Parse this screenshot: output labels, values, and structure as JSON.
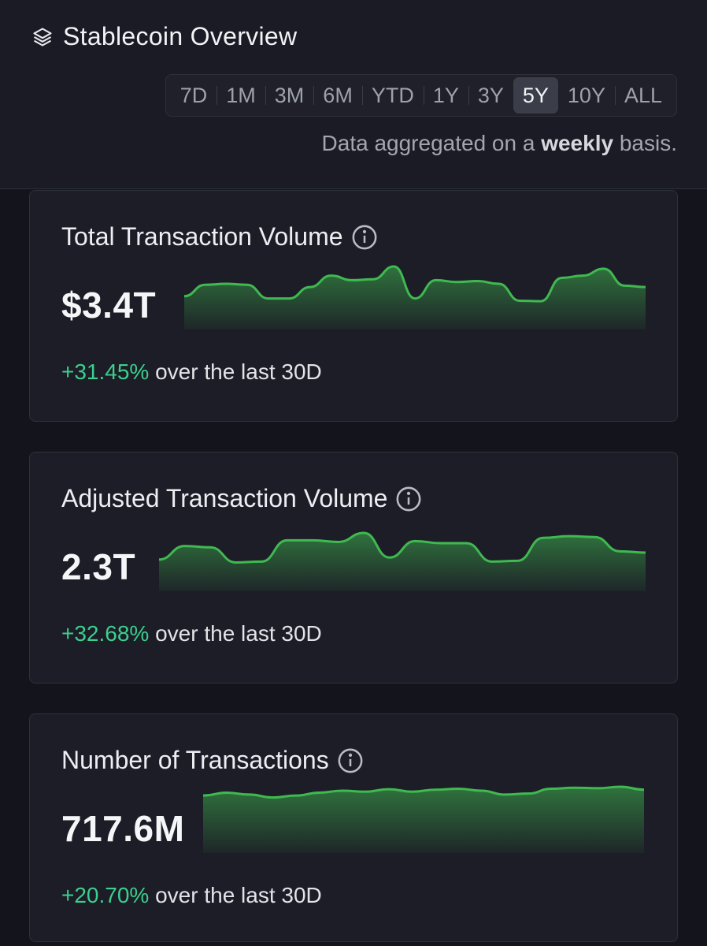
{
  "header": {
    "title": "Stablecoin Overview",
    "icon": "layers-icon",
    "ranges": [
      "7D",
      "1M",
      "3M",
      "6M",
      "YTD",
      "1Y",
      "3Y",
      "5Y",
      "10Y",
      "ALL"
    ],
    "active_range": "5Y",
    "note_prefix": "Data aggregated on a ",
    "note_bold": "weekly",
    "note_suffix": " basis."
  },
  "colors": {
    "positive": "#3ccf8e",
    "sparkline": "#3fb950",
    "background": "#14151c",
    "card": "#1c1d26"
  },
  "cards": [
    {
      "title": "Total Transaction Volume",
      "value": "$3.4T",
      "change_pct": "+31.45%",
      "change_suffix": " over the last 30D",
      "sparkline": [
        0.35,
        0.6,
        0.62,
        0.6,
        0.3,
        0.3,
        0.55,
        0.8,
        0.7,
        0.72,
        1.0,
        0.3,
        0.7,
        0.66,
        0.68,
        0.62,
        0.25,
        0.24,
        0.75,
        0.8,
        0.95,
        0.58,
        0.55
      ]
    },
    {
      "title": "Adjusted Transaction Volume",
      "value": "2.3T",
      "change_pct": "+32.68%",
      "change_suffix": " over the last 30D",
      "sparkline": [
        0.35,
        0.68,
        0.65,
        0.28,
        0.3,
        0.82,
        0.82,
        0.78,
        1.0,
        0.4,
        0.8,
        0.75,
        0.75,
        0.3,
        0.32,
        0.88,
        0.92,
        0.9,
        0.55,
        0.52
      ]
    },
    {
      "title": "Number of Transactions",
      "value": "717.6M",
      "change_pct": "+20.70%",
      "change_suffix": " over the last 30D",
      "sparkline": [
        0.82,
        0.88,
        0.84,
        0.78,
        0.82,
        0.88,
        0.92,
        0.9,
        0.95,
        0.9,
        0.94,
        0.96,
        0.92,
        0.84,
        0.86,
        0.96,
        0.98,
        0.97,
        1.0,
        0.94
      ]
    }
  ]
}
